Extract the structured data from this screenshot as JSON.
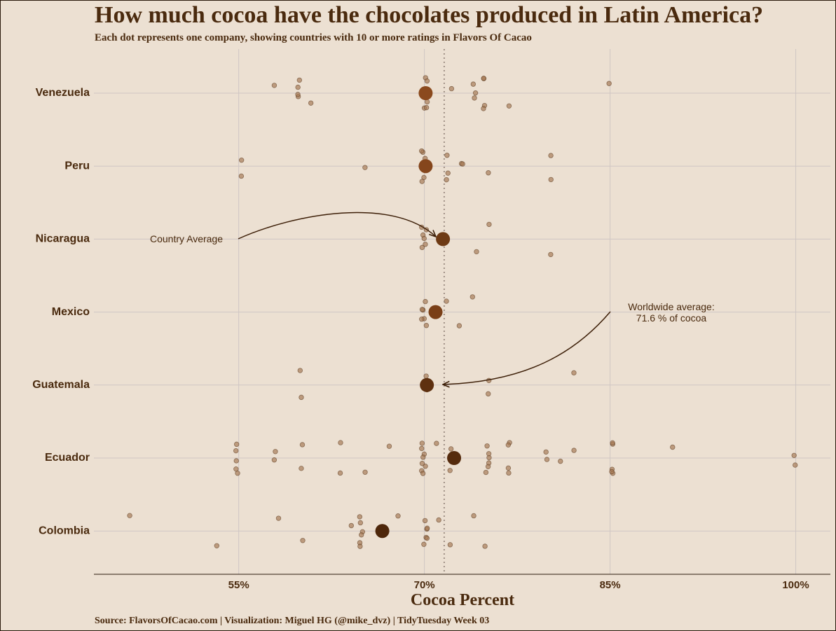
{
  "chart_data": {
    "type": "strip",
    "title": "How much cocoa have the chocolates produced in Latin America?",
    "subtitle": "Each dot represents one company, showing countries with 10 or more ratings in Flavors Of Cacao",
    "x_label": "Cocoa Percent",
    "caption": "Source: FlavorsOfCacao.com | Visualization: Miguel HG (@mike_dvz) | TidyTuesday Week 03",
    "categories": [
      "Venezuela",
      "Peru",
      "Nicaragua",
      "Mexico",
      "Guatemala",
      "Ecuador",
      "Colombia"
    ],
    "company_values": [
      [
        58,
        60,
        60,
        60,
        61,
        60,
        70,
        70,
        70,
        70,
        70,
        72,
        74,
        74,
        74,
        75,
        75,
        75,
        75,
        77,
        85
      ],
      [
        55,
        55,
        65,
        70,
        70,
        70,
        70,
        70,
        70,
        72,
        72,
        72,
        73,
        73,
        75,
        80,
        80
      ],
      [
        70,
        70,
        70,
        70,
        70,
        70,
        74,
        75,
        80
      ],
      [
        70,
        70,
        70,
        70,
        70,
        70,
        72,
        73,
        74
      ],
      [
        60,
        60,
        70,
        70,
        70,
        75,
        75,
        82
      ],
      [
        55,
        55,
        55,
        55,
        55,
        58,
        58,
        60,
        60,
        63,
        63,
        65,
        67,
        70,
        70,
        70,
        70,
        70,
        70,
        70,
        70,
        71,
        72,
        72,
        75,
        75,
        75,
        75,
        75,
        75,
        77,
        77,
        77,
        77,
        80,
        80,
        81,
        82,
        85,
        85,
        85,
        85,
        85,
        90,
        100,
        100
      ],
      [
        46,
        53,
        58,
        60,
        64,
        65,
        65,
        65,
        65,
        65,
        65,
        68,
        70,
        70,
        70,
        70,
        70,
        70,
        71,
        72,
        74,
        75
      ]
    ],
    "averages": [
      70.1,
      70.1,
      71.5,
      70.9,
      70.2,
      72.4,
      66.6
    ],
    "average_colors": [
      "#8b4a1e",
      "#85461c",
      "#6e3a14",
      "#7a3f17",
      "#5e3010",
      "#552b0d",
      "#4e270b"
    ],
    "point_color": "#a37450",
    "worldwide_average": 71.6,
    "xlim": [
      43.3,
      102.8
    ],
    "xticks": [
      {
        "value": 55,
        "label": "55%"
      },
      {
        "value": 70,
        "label": "70%"
      },
      {
        "value": 85,
        "label": "85%"
      },
      {
        "value": 100,
        "label": "100%"
      }
    ],
    "grid": true,
    "annotations": [
      "Country Average",
      "Worldwide average:",
      "71.6 % of cocoa"
    ]
  }
}
